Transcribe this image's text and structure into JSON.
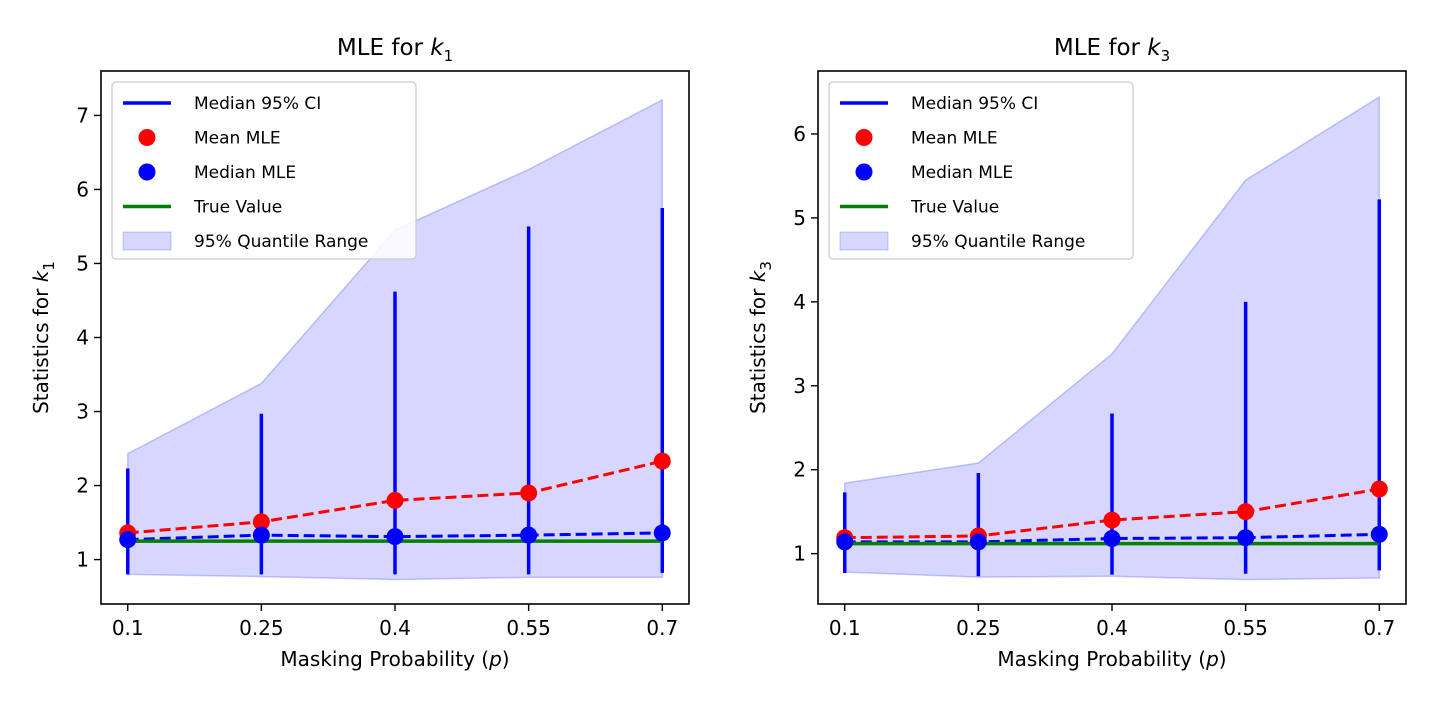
{
  "chart_data": [
    {
      "type": "line",
      "title_prefix": "MLE for ",
      "title_var": "k",
      "title_sub": "1",
      "xlabel_prefix": "Masking Probability (",
      "xlabel_var": "p",
      "xlabel_suffix": ")",
      "ylabel_prefix": "Statistics for ",
      "ylabel_var": "k",
      "ylabel_sub": "1",
      "x": [
        0.1,
        0.25,
        0.4,
        0.55,
        0.7
      ],
      "x_tick_labels": [
        "0.1",
        "0.25",
        "0.4",
        "0.55",
        "0.7"
      ],
      "xlim": [
        0.07,
        0.73
      ],
      "ylim": [
        0.4,
        7.6
      ],
      "y_ticks": [
        1,
        2,
        3,
        4,
        5,
        6,
        7
      ],
      "y_tick_labels": [
        "1",
        "2",
        "3",
        "4",
        "5",
        "6",
        "7"
      ],
      "legend_placement": "top-left",
      "legend": [
        "Median 95% CI",
        "Mean MLE",
        "Median MLE",
        "True Value",
        "95% Quantile Range"
      ],
      "series": {
        "mean_mle": [
          1.36,
          1.51,
          1.8,
          1.9,
          2.33
        ],
        "median_mle": [
          1.27,
          1.33,
          1.31,
          1.33,
          1.36
        ],
        "true_value": [
          1.25,
          1.25,
          1.25,
          1.25,
          1.25
        ],
        "ci_lower": [
          0.8,
          0.8,
          0.8,
          0.8,
          0.82
        ],
        "ci_upper": [
          2.23,
          2.97,
          4.62,
          5.5,
          5.75
        ],
        "quantile_lower": [
          0.8,
          0.77,
          0.73,
          0.76,
          0.76
        ],
        "quantile_upper": [
          2.43,
          3.38,
          5.45,
          6.27,
          7.21
        ]
      },
      "colors": {
        "ci": "#0000ff",
        "mean": "#ff0000",
        "median": "#0000ff",
        "true": "#008000",
        "band": "#0000ff"
      }
    },
    {
      "type": "line",
      "title_prefix": "MLE for ",
      "title_var": "k",
      "title_sub": "3",
      "xlabel_prefix": "Masking Probability (",
      "xlabel_var": "p",
      "xlabel_suffix": ")",
      "ylabel_prefix": "Statistics for ",
      "ylabel_var": "k",
      "ylabel_sub": "3",
      "x": [
        0.1,
        0.25,
        0.4,
        0.55,
        0.7
      ],
      "x_tick_labels": [
        "0.1",
        "0.25",
        "0.4",
        "0.55",
        "0.7"
      ],
      "xlim": [
        0.07,
        0.73
      ],
      "ylim": [
        0.4,
        6.75
      ],
      "y_ticks": [
        1,
        2,
        3,
        4,
        5,
        6
      ],
      "y_tick_labels": [
        "1",
        "2",
        "3",
        "4",
        "5",
        "6"
      ],
      "legend_placement": "top-left",
      "legend": [
        "Median 95% CI",
        "Mean MLE",
        "Median MLE",
        "True Value",
        "95% Quantile Range"
      ],
      "series": {
        "mean_mle": [
          1.19,
          1.21,
          1.4,
          1.5,
          1.77
        ],
        "median_mle": [
          1.14,
          1.14,
          1.18,
          1.19,
          1.23
        ],
        "true_value": [
          1.12,
          1.12,
          1.12,
          1.12,
          1.12
        ],
        "ci_lower": [
          0.77,
          0.73,
          0.75,
          0.76,
          0.8
        ],
        "ci_upper": [
          1.73,
          1.96,
          2.67,
          4.0,
          5.22
        ],
        "quantile_lower": [
          0.78,
          0.72,
          0.73,
          0.69,
          0.71
        ],
        "quantile_upper": [
          1.84,
          2.08,
          3.38,
          5.45,
          6.44
        ]
      },
      "colors": {
        "ci": "#0000ff",
        "mean": "#ff0000",
        "median": "#0000ff",
        "true": "#008000",
        "band": "#0000ff"
      }
    }
  ]
}
